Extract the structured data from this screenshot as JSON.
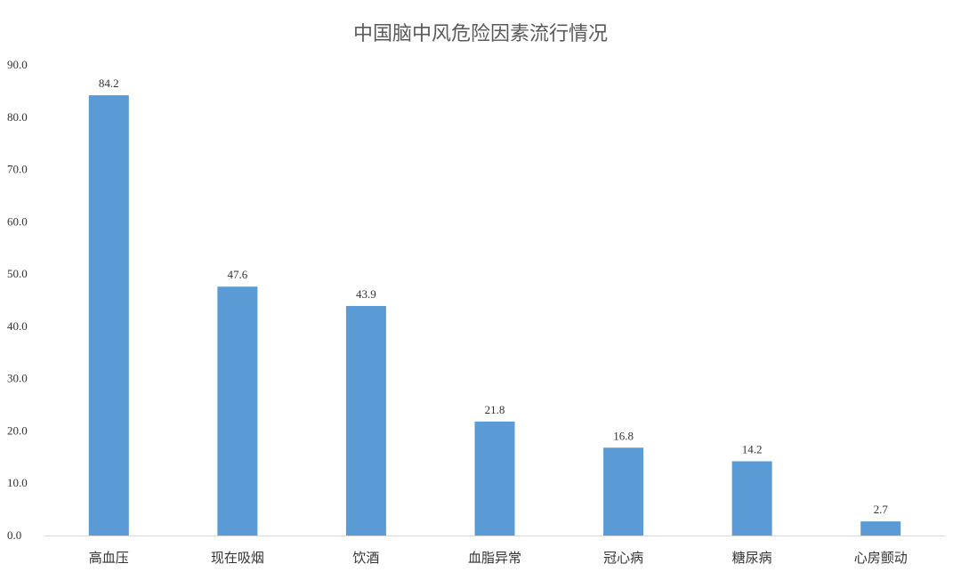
{
  "chart_data": {
    "type": "bar",
    "title": "中国脑中风危险因素流行情况",
    "xlabel": "",
    "ylabel": "",
    "categories": [
      "高血压",
      "现在吸烟",
      "饮酒",
      "血脂异常",
      "冠心病",
      "糖尿病",
      "心房颤动"
    ],
    "values": [
      84.2,
      47.6,
      43.9,
      21.8,
      16.8,
      14.2,
      2.7
    ],
    "data_labels": [
      "84.2",
      "47.6",
      "43.9",
      "21.8",
      "16.8",
      "14.2",
      "2.7"
    ],
    "ylim": [
      0,
      90
    ],
    "yticks": [
      "0.0",
      "10.0",
      "20.0",
      "30.0",
      "40.0",
      "50.0",
      "60.0",
      "70.0",
      "80.0",
      "90.0"
    ],
    "ytick_values": [
      0,
      10,
      20,
      30,
      40,
      50,
      60,
      70,
      80,
      90
    ],
    "grid": false,
    "legend": "none",
    "bar_color": "#5B9BD5",
    "axis_color": "#D9D9D9"
  }
}
